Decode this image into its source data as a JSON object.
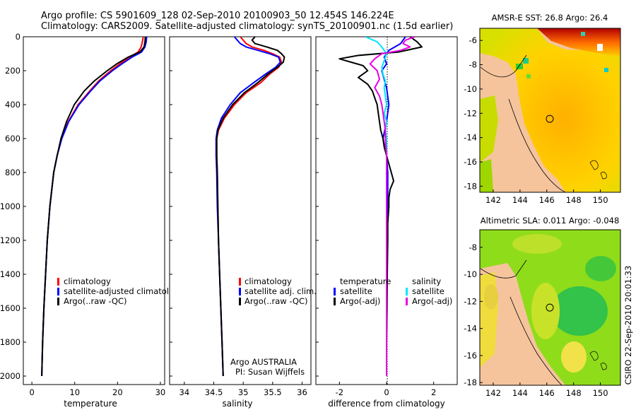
{
  "header": {
    "line1": "Argo profile: CS 5901609_128 02-Sep-2010 20100903_50 12.454S 146.224E",
    "line2": "Climatology: CARS2009. Satellite-adjusted climatology: synTS_20100901.nc (1.5d earlier)"
  },
  "footer": {
    "credit": "CSIRO 22-Sep-2010 20:01:33",
    "argo_label": "Argo AUSTRALIA",
    "pi_label": "PI: Susan Wijffels"
  },
  "colors": {
    "climatology": "#ff0000",
    "satellite": "#0000ff",
    "argo": "#000000",
    "sal_satellite": "#00e5ff",
    "sal_argo": "#e600e6",
    "land": "#f5c49c"
  },
  "chart_data": [
    {
      "type": "line",
      "id": "temperature",
      "xlabel": "temperature",
      "ylabel": "",
      "xlim": [
        -2,
        31
      ],
      "ylim": [
        2050,
        0
      ],
      "xticks": [
        0,
        10,
        20,
        30
      ],
      "xtick_labels": [
        "0",
        "10",
        "20",
        "30"
      ],
      "yticks": [
        0,
        200,
        400,
        600,
        800,
        1000,
        1200,
        1400,
        1600,
        1800,
        2000
      ],
      "ytick_labels": [
        "0",
        "200",
        "400",
        "600",
        "800",
        "1000",
        "1200",
        "1400",
        "1600",
        "1800",
        "2000"
      ],
      "legend": {
        "items": [
          "climatology",
          "satellite-adjusted climatology",
          "Argo(..raw -QC)"
        ]
      },
      "series": [
        {
          "name": "climatology",
          "color": "#ff0000",
          "depth": [
            0,
            30,
            60,
            90,
            120,
            160,
            200,
            260,
            320,
            400,
            500,
            600,
            700,
            800,
            1000,
            1200,
            1400,
            1600,
            1800,
            2000
          ],
          "values": [
            26.0,
            25.8,
            25.5,
            24.8,
            22.8,
            20.5,
            18.4,
            15.6,
            13.5,
            10.8,
            8.5,
            6.9,
            5.9,
            5.1,
            4.2,
            3.6,
            3.2,
            2.8,
            2.5,
            2.3
          ]
        },
        {
          "name": "satellite-adjusted climatology",
          "color": "#0000ff",
          "depth": [
            0,
            30,
            60,
            90,
            120,
            160,
            200,
            260,
            320,
            400,
            500,
            600,
            700,
            800,
            1000,
            1200,
            1400,
            1600,
            1800,
            2000
          ],
          "values": [
            26.8,
            26.7,
            26.4,
            25.6,
            23.4,
            21.0,
            18.8,
            15.9,
            13.7,
            11.0,
            8.6,
            7.0,
            5.9,
            5.1,
            4.2,
            3.6,
            3.2,
            2.8,
            2.5,
            2.3
          ]
        },
        {
          "name": "Argo(..raw -QC)",
          "color": "#000000",
          "depth": [
            0,
            30,
            60,
            90,
            120,
            160,
            200,
            260,
            320,
            400,
            500,
            600,
            700,
            800,
            1000,
            1200,
            1400,
            1600,
            1800,
            2000
          ],
          "values": [
            26.5,
            26.4,
            26.2,
            25.2,
            22.5,
            19.8,
            17.6,
            14.6,
            12.2,
            9.9,
            8.1,
            6.8,
            5.9,
            5.1,
            4.2,
            3.6,
            3.2,
            2.8,
            2.5,
            2.3
          ]
        }
      ]
    },
    {
      "type": "line",
      "id": "salinity",
      "xlabel": "salinity",
      "xlim": [
        33.75,
        36.15
      ],
      "ylim": [
        2050,
        0
      ],
      "xticks": [
        34,
        34.5,
        35,
        35.5,
        36
      ],
      "xtick_labels": [
        "34",
        "34.5",
        "35",
        "35.5",
        "36"
      ],
      "legend": {
        "items": [
          "climatology",
          "satellite adj. clim.",
          "Argo(..raw -QC)"
        ]
      },
      "series": [
        {
          "name": "climatology",
          "color": "#ff0000",
          "depth": [
            0,
            20,
            40,
            60,
            80,
            100,
            120,
            150,
            180,
            220,
            270,
            330,
            400,
            480,
            550,
            600,
            700,
            800,
            1000,
            1200,
            1400,
            1600,
            1800,
            2000
          ],
          "values": [
            34.95,
            35.0,
            35.05,
            35.15,
            35.35,
            35.5,
            35.62,
            35.65,
            35.6,
            35.45,
            35.3,
            35.05,
            34.85,
            34.68,
            34.58,
            34.55,
            34.55,
            34.56,
            34.57,
            34.58,
            34.6,
            34.62,
            34.64,
            34.66
          ]
        },
        {
          "name": "satellite adj. clim.",
          "color": "#0000ff",
          "depth": [
            0,
            20,
            40,
            60,
            80,
            100,
            120,
            150,
            180,
            220,
            270,
            330,
            400,
            480,
            550,
            600,
            700,
            800,
            1000,
            1200,
            1400,
            1600,
            1800,
            2000
          ],
          "values": [
            34.85,
            34.9,
            34.95,
            35.05,
            35.25,
            35.45,
            35.6,
            35.63,
            35.55,
            35.38,
            35.18,
            34.95,
            34.78,
            34.63,
            34.56,
            34.54,
            34.54,
            34.55,
            34.56,
            34.58,
            34.6,
            34.62,
            34.64,
            34.66
          ]
        },
        {
          "name": "Argo(..raw -QC)",
          "color": "#000000",
          "depth": [
            0,
            20,
            40,
            60,
            80,
            100,
            120,
            150,
            180,
            220,
            270,
            330,
            400,
            480,
            550,
            600,
            700,
            800,
            1000,
            1200,
            1400,
            1600,
            1800,
            2000
          ],
          "values": [
            35.2,
            35.15,
            35.2,
            35.4,
            35.58,
            35.65,
            35.7,
            35.68,
            35.58,
            35.42,
            35.25,
            35.02,
            34.82,
            34.66,
            34.57,
            34.55,
            34.55,
            34.56,
            34.57,
            34.58,
            34.6,
            34.62,
            34.64,
            34.66
          ]
        }
      ]
    },
    {
      "type": "line",
      "id": "difference",
      "xlabel": "difference from climatology",
      "xlim": [
        -3,
        3
      ],
      "ylim": [
        2050,
        0
      ],
      "xticks": [
        -2,
        0,
        2
      ],
      "xtick_labels": [
        "-2",
        "0",
        "2"
      ],
      "legend": {
        "items": [
          "temperature",
          "satellite",
          "Argo(-adj)",
          "salinity",
          "satellite",
          "Argo(-adj)"
        ]
      },
      "series": [
        {
          "name": "temperature satellite",
          "color": "#0000ff",
          "depth": [
            0,
            40,
            80,
            120,
            160,
            200,
            300,
            400,
            500,
            600,
            700,
            800,
            900,
            1000,
            1100,
            1400,
            1700,
            2000
          ],
          "values": [
            0.8,
            0.6,
            0.1,
            -0.1,
            0.0,
            -0.2,
            0.0,
            0.1,
            0.0,
            -0.15,
            0.0,
            0.05,
            0.05,
            0.05,
            0.02,
            0.0,
            0.0,
            0.0
          ]
        },
        {
          "name": "temperature Argo(-adj)",
          "color": "#000000",
          "depth": [
            0,
            30,
            60,
            90,
            110,
            130,
            150,
            170,
            200,
            240,
            280,
            320,
            360,
            400,
            450,
            500,
            550,
            600,
            650,
            700,
            750,
            800,
            850,
            900,
            950,
            1000,
            1100,
            1200,
            1400,
            1600,
            1800,
            2000
          ],
          "values": [
            1.0,
            1.3,
            1.5,
            0.5,
            -1.2,
            -2.0,
            -1.5,
            -1.0,
            -0.8,
            -1.2,
            -0.8,
            -0.6,
            -0.5,
            -0.4,
            -0.35,
            -0.3,
            -0.25,
            -0.15,
            -0.1,
            0.0,
            0.1,
            0.2,
            0.3,
            0.15,
            0.1,
            0.1,
            0.05,
            0.05,
            0.03,
            0.02,
            0.0,
            0.0
          ]
        },
        {
          "name": "salinity satellite",
          "color": "#00e5ff",
          "depth": [
            0,
            30,
            60,
            100,
            140,
            180,
            220,
            260,
            300,
            350,
            400,
            450,
            500,
            550,
            600,
            700,
            1000,
            1500,
            2000
          ],
          "values": [
            -0.9,
            -0.4,
            -0.2,
            0.0,
            -0.1,
            -0.2,
            -0.15,
            -0.05,
            -0.1,
            -0.05,
            0.0,
            -0.1,
            0.0,
            -0.05,
            0.0,
            0.0,
            0.0,
            0.0,
            0.0
          ]
        },
        {
          "name": "salinity Argo(-adj)",
          "color": "#e600e6",
          "depth": [
            0,
            20,
            40,
            60,
            80,
            100,
            130,
            160,
            200,
            250,
            300,
            350,
            400,
            450,
            500,
            550,
            600,
            700,
            800,
            1000,
            1500,
            2000
          ],
          "values": [
            1.2,
            0.8,
            0.7,
            1.0,
            0.6,
            -0.2,
            -0.5,
            -0.7,
            -0.4,
            -0.3,
            -0.5,
            -0.3,
            -0.2,
            -0.15,
            -0.1,
            -0.05,
            -0.05,
            0.0,
            0.0,
            0.0,
            0.0,
            0.0
          ]
        }
      ]
    },
    {
      "type": "heatmap",
      "id": "sst_map",
      "title": "AMSR-E SST: 26.8  Argo: 26.4",
      "xlim": [
        141,
        151.5
      ],
      "ylim": [
        -18.5,
        -5
      ],
      "xticks": [
        142,
        144,
        146,
        148,
        150
      ],
      "yticks": [
        -6,
        -8,
        -10,
        -12,
        -14,
        -16,
        -18
      ],
      "xtick_labels": [
        "142",
        "144",
        "146",
        "148",
        "150"
      ],
      "ytick_labels": [
        "-6",
        "-8",
        "-10",
        "-12",
        "-14",
        "-16",
        "-18"
      ],
      "float_position": {
        "lon": 146.224,
        "lat": -12.454
      }
    },
    {
      "type": "heatmap",
      "id": "sla_map",
      "title": "Altimetric SLA: 0.011  Argo: -0.048",
      "xlim": [
        141,
        151.5
      ],
      "ylim": [
        -18.2,
        -6.7
      ],
      "xticks": [
        142,
        144,
        146,
        148,
        150
      ],
      "yticks": [
        -8,
        -10,
        -12,
        -14,
        -16,
        -18
      ],
      "xtick_labels": [
        "142",
        "144",
        "146",
        "148",
        "150"
      ],
      "ytick_labels": [
        "-8",
        "-10",
        "-12",
        "-14",
        "-16",
        "-18"
      ],
      "float_position": {
        "lon": 146.224,
        "lat": -12.454
      }
    }
  ]
}
